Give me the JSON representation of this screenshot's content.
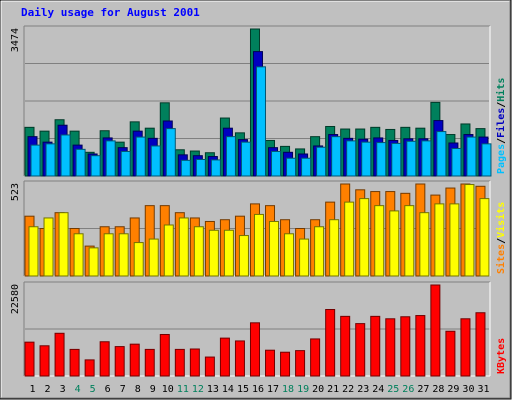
{
  "chart_data": {
    "type": "bar",
    "title": "Daily usage for August 2001",
    "categories": [
      "1",
      "2",
      "3",
      "4",
      "5",
      "6",
      "7",
      "8",
      "9",
      "10",
      "11",
      "12",
      "13",
      "14",
      "15",
      "16",
      "17",
      "18",
      "19",
      "20",
      "21",
      "22",
      "23",
      "24",
      "25",
      "26",
      "27",
      "28",
      "29",
      "30",
      "31"
    ],
    "weekend_days": [
      "4",
      "5",
      "11",
      "12",
      "18",
      "19",
      "25",
      "26"
    ],
    "panels": [
      {
        "id": "hits-files-pages",
        "axis_max_label": "3474",
        "ylim": [
          0,
          3474
        ],
        "right_labels": [
          {
            "text": "Hits",
            "color": "#00805c"
          },
          {
            "text": "/",
            "color": "#000000"
          },
          {
            "text": "Files",
            "color": "#0000c0"
          },
          {
            "text": "/",
            "color": "#000000"
          },
          {
            "text": "Pages",
            "color": "#00c0ff"
          }
        ],
        "series": [
          {
            "name": "Hits",
            "color": "#00805c",
            "values": [
              1150,
              1060,
              1330,
              1060,
              560,
              1070,
              800,
              1280,
              1130,
              1730,
              620,
              590,
              550,
              1370,
              1020,
              3474,
              840,
              700,
              640,
              930,
              1170,
              1110,
              1110,
              1150,
              1100,
              1150,
              1130,
              1740,
              980,
              1230,
              1120
            ]
          },
          {
            "name": "Files",
            "color": "#0000c0",
            "values": [
              930,
              800,
              1200,
              730,
              520,
              900,
              670,
              1060,
              890,
              1300,
              500,
              480,
              460,
              1130,
              860,
              2940,
              670,
              560,
              520,
              710,
              980,
              890,
              870,
              900,
              840,
              880,
              880,
              1310,
              780,
              980,
              920
            ]
          },
          {
            "name": "Pages",
            "color": "#00c0ff",
            "values": [
              730,
              760,
              970,
              630,
              480,
              830,
              580,
              920,
              710,
              1120,
              370,
              390,
              380,
              930,
              800,
              2580,
              580,
              420,
              420,
              680,
              930,
              830,
              800,
              790,
              770,
              820,
              830,
              1050,
              650,
              920,
              760
            ]
          }
        ]
      },
      {
        "id": "sites-visits",
        "axis_max_label": "523",
        "ylim": [
          0,
          523
        ],
        "right_labels": [
          {
            "text": "Visits",
            "color": "#ffff00"
          },
          {
            "text": "/",
            "color": "#000000"
          },
          {
            "text": "Sites",
            "color": "#ff8000"
          }
        ],
        "series": [
          {
            "name": "Sites",
            "color": "#ff8000",
            "values": [
              340,
              270,
              360,
              270,
              170,
              280,
              280,
              330,
              400,
              400,
              360,
              330,
              310,
              320,
              340,
              410,
              400,
              320,
              270,
              320,
              420,
              523,
              490,
              480,
              480,
              470,
              523,
              460,
              500,
              523,
              510
            ]
          },
          {
            "name": "Visits",
            "color": "#ffff00",
            "values": [
              280,
              330,
              360,
              240,
              160,
              240,
              240,
              190,
              210,
              290,
              330,
              280,
              260,
              260,
              230,
              350,
              310,
              240,
              210,
              280,
              320,
              420,
              440,
              400,
              370,
              400,
              360,
              410,
              410,
              520,
              440
            ]
          }
        ]
      },
      {
        "id": "kbytes",
        "axis_max_label": "22580",
        "ylim": [
          0,
          22580
        ],
        "right_labels": [
          {
            "text": "KBytes",
            "color": "#ff0000"
          }
        ],
        "series": [
          {
            "name": "KBytes",
            "color": "#ff0000",
            "values": [
              8400,
              7500,
              10600,
              6600,
              4000,
              8500,
              7300,
              7900,
              6600,
              10300,
              6600,
              6700,
              4700,
              9400,
              8700,
              13200,
              6400,
              5900,
              6300,
              9200,
              16500,
              14800,
              13000,
              14800,
              14200,
              14700,
              15000,
              22580,
              11100,
              14200,
              15700
            ]
          }
        ]
      }
    ]
  }
}
